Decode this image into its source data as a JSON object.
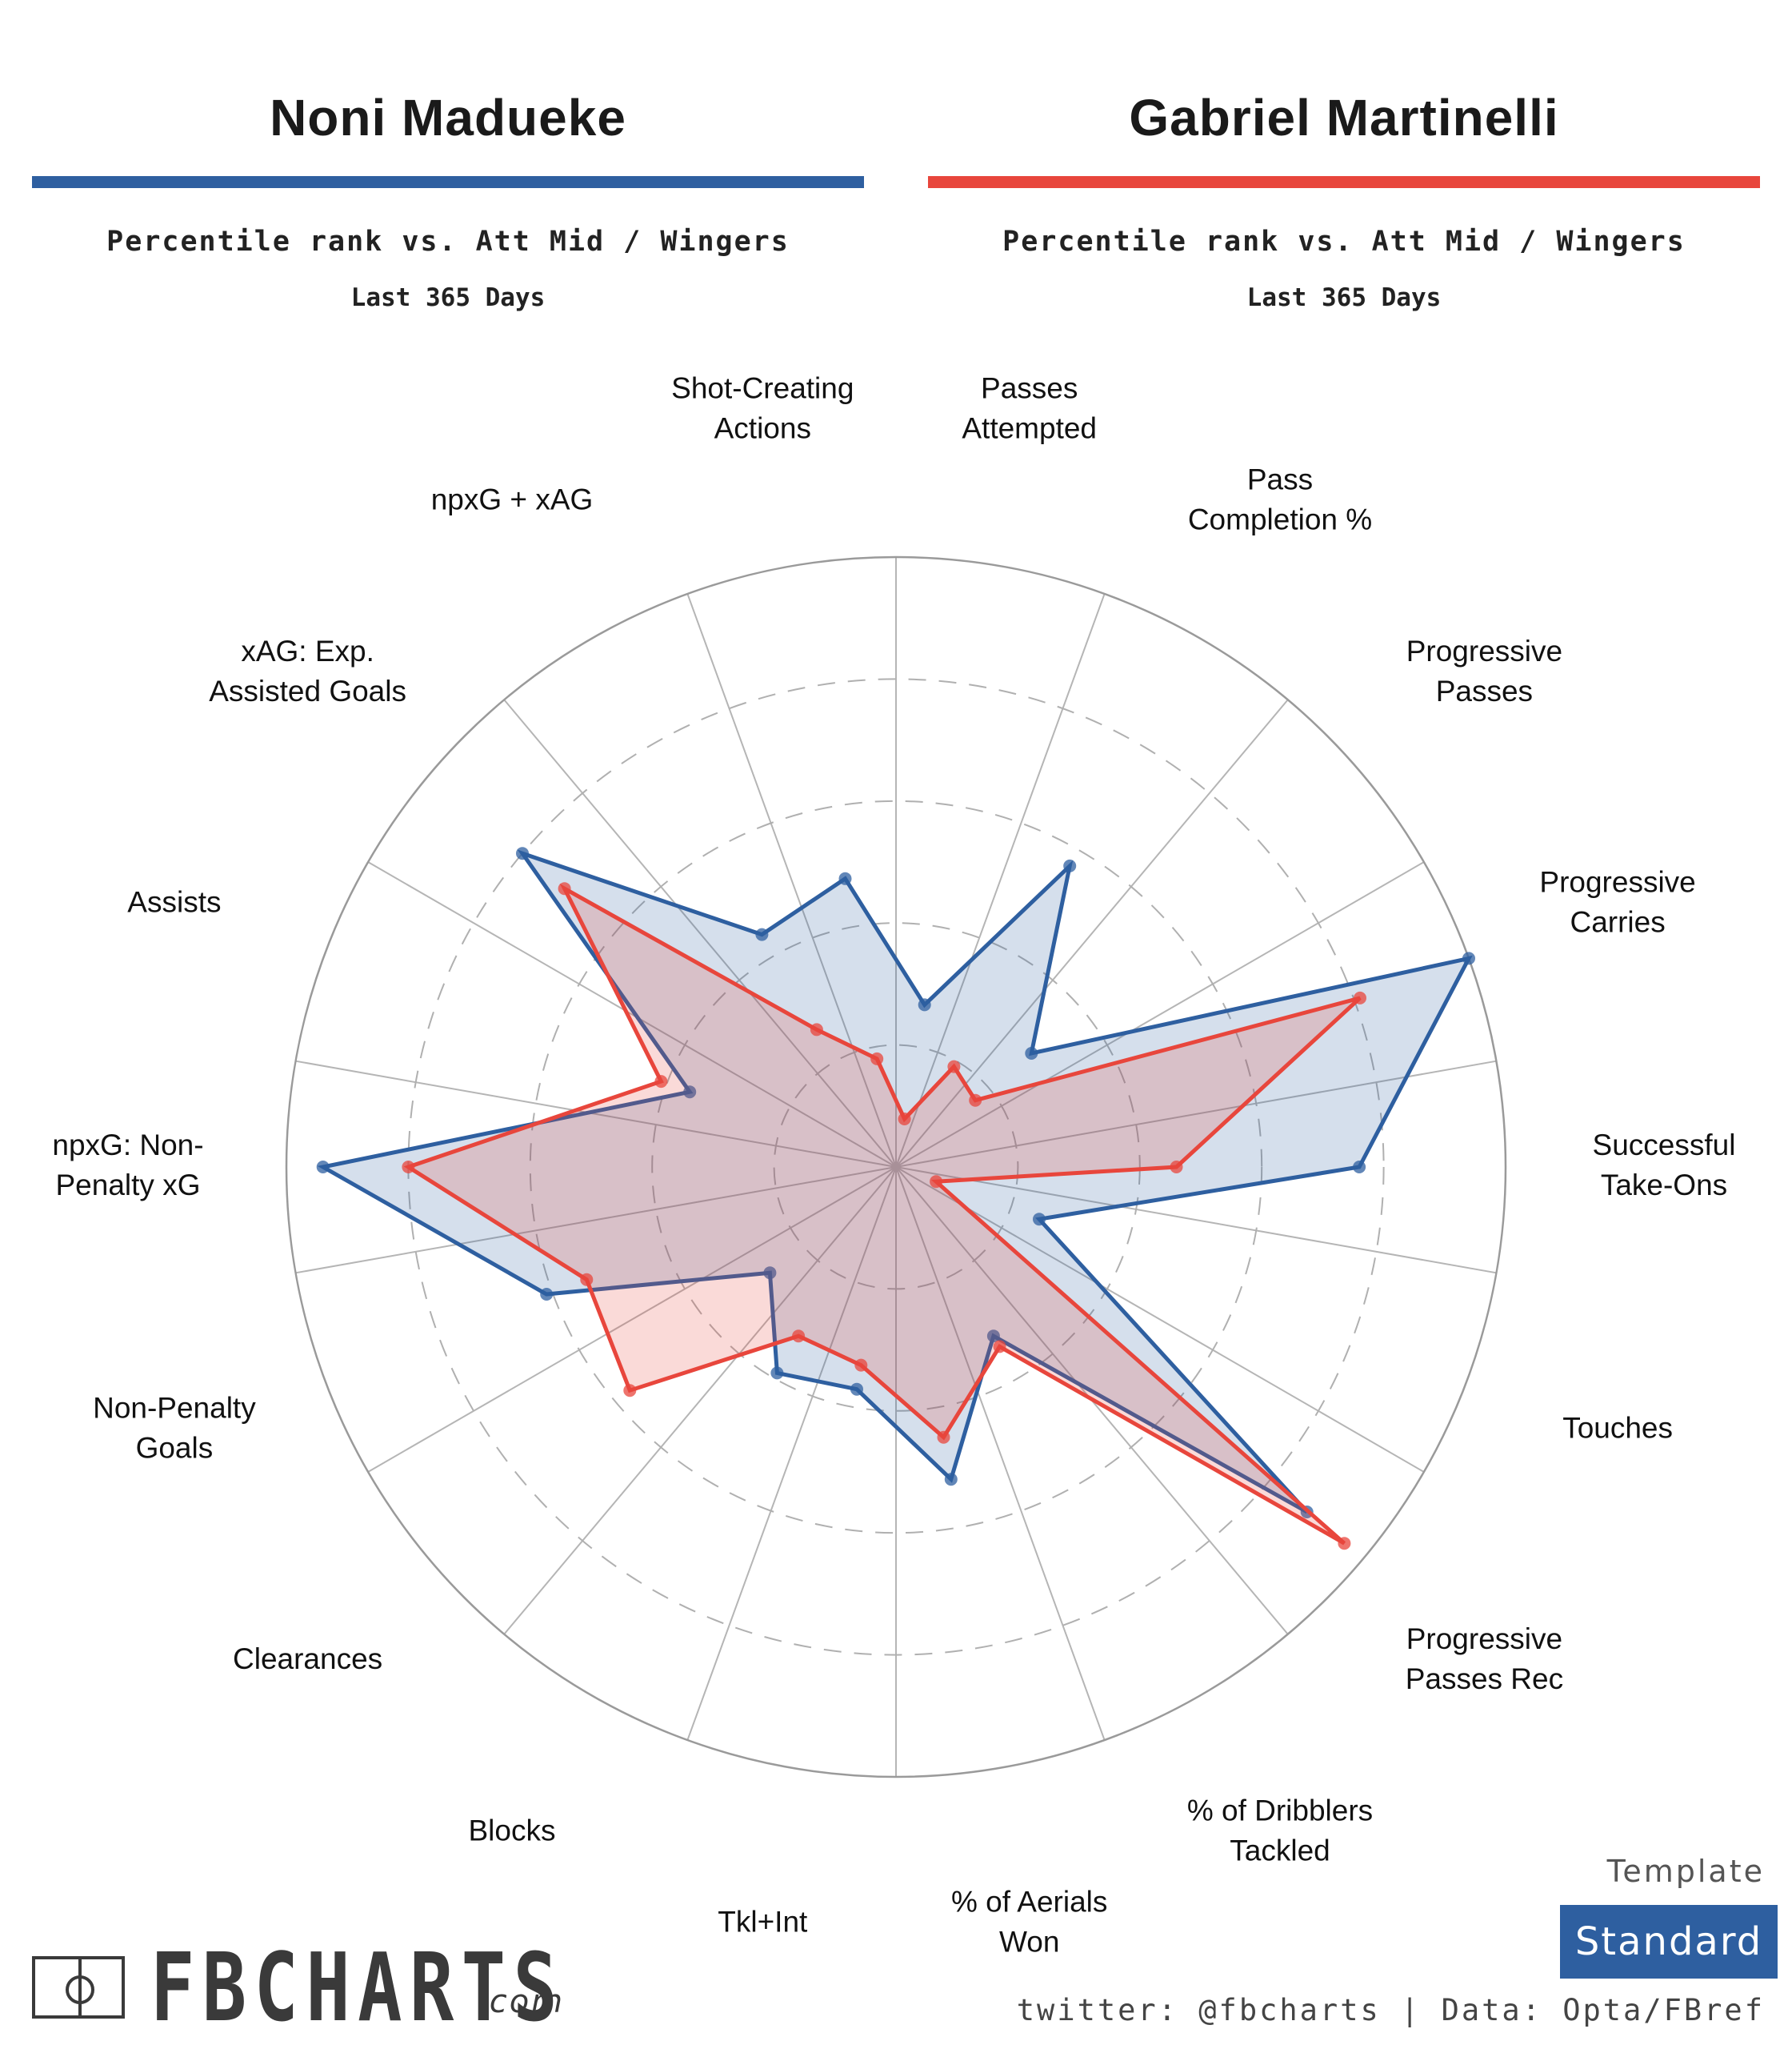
{
  "players": [
    {
      "name": "Noni Madueke",
      "color": "#2e5fa0",
      "subtitle": "Percentile rank vs. Att Mid / Wingers",
      "period": "Last 365 Days"
    },
    {
      "name": "Gabriel Martinelli",
      "color": "#e8463c",
      "subtitle": "Percentile rank vs. Att Mid / Wingers",
      "period": "Last 365 Days"
    }
  ],
  "chart_data": {
    "type": "radar",
    "scale_max": 100,
    "ring_values": [
      20,
      40,
      60,
      80,
      100
    ],
    "categories": [
      "Passes Attempted",
      "Pass Completion %",
      "Progressive Passes",
      "Progressive Carries",
      "Successful Take-Ons",
      "Touches",
      "Progressive Passes Rec",
      "% of Dribblers Tackled",
      "% of Aerials Won",
      "Tkl+Int",
      "Blocks",
      "Clearances",
      "Non-Penalty Goals",
      "npxG: Non-Penalty xG",
      "Assists",
      "xAG: Exp. Assisted Goals",
      "npxG + xAG",
      "Shot-Creating Actions"
    ],
    "label_lines": [
      [
        "Passes",
        "Attempted"
      ],
      [
        "Pass",
        "Completion %"
      ],
      [
        "Progressive",
        "Passes"
      ],
      [
        "Progressive",
        "Carries"
      ],
      [
        "Successful",
        "Take-Ons"
      ],
      [
        "Touches"
      ],
      [
        "Progressive",
        "Passes Rec"
      ],
      [
        "% of Dribblers",
        "Tackled"
      ],
      [
        "% of Aerials",
        "Won"
      ],
      [
        "Tkl+Int"
      ],
      [
        "Blocks"
      ],
      [
        "Clearances"
      ],
      [
        "Non-Penalty",
        "Goals"
      ],
      [
        "npxG: Non-",
        "Penalty xG"
      ],
      [
        "Assists"
      ],
      [
        "xAG: Exp.",
        "Assisted Goals"
      ],
      [
        "npxG + xAG"
      ],
      [
        "Shot-Creating",
        "Actions"
      ]
    ],
    "series": [
      {
        "name": "Noni Madueke",
        "color": "#2e5fa0",
        "values": [
          27,
          57,
          29,
          100,
          76,
          25,
          88,
          32,
          52,
          37,
          39,
          27,
          61,
          94,
          36,
          80,
          44,
          48
        ]
      },
      {
        "name": "Gabriel Martinelli",
        "color": "#e8463c",
        "values": [
          8,
          19,
          17,
          81,
          46,
          7,
          96,
          34,
          45,
          33,
          32,
          57,
          54,
          80,
          41,
          71,
          26,
          18
        ]
      }
    ]
  },
  "template": {
    "caption": "Template",
    "name": "Standard"
  },
  "branding": {
    "logo_text": "FBCHARTS",
    "domain_suffix": ".com"
  },
  "credits": "twitter: @fbcharts | Data: Opta/FBref"
}
